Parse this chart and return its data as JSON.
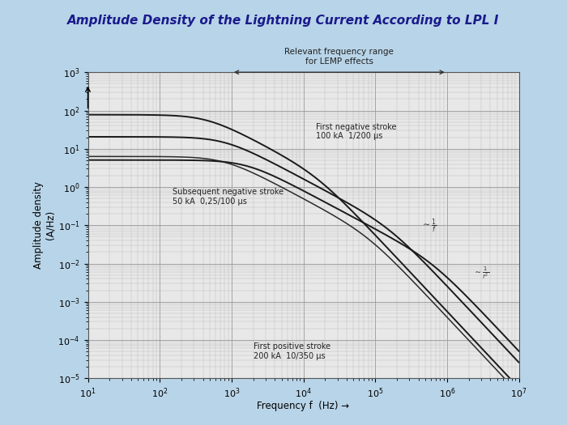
{
  "title": "Amplitude Density of the Lightning Current According to LPL I",
  "title_color": "#1a1a8c",
  "bg_color": "#b8d4e8",
  "plot_bg_color": "#e8e8e8",
  "ylabel": "Amplitude density\n(A/Hz)",
  "xlabel": "Frequency f  (Hz) →",
  "xlim_log": [
    1,
    7
  ],
  "ylim_log": [
    -5,
    3
  ],
  "lemp_range_log": [
    3,
    6
  ],
  "lemp_text": "Relevant frequency range\nfor LEMP effects",
  "ann_first_neg": "First negative stroke\n100 kA  1/200 μs",
  "ann_subseq": "Subsequent negative stroke\n50 kA  0,25/100 μs",
  "ann_first_pos": "First positive stroke\n200 kA  10/350 μs",
  "ann_1f": "~ 1\n    f",
  "ann_1f2": "~ 1\n   f²"
}
